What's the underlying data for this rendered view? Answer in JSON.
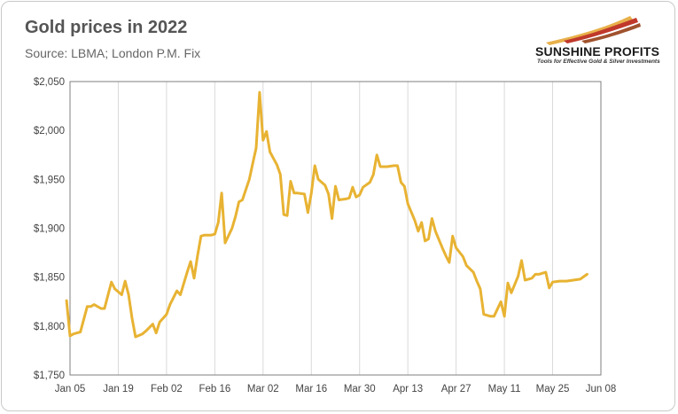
{
  "header": {
    "title": "Gold prices in 2022",
    "subtitle": "Source: LBMA; London P.M. Fix"
  },
  "logo": {
    "name": "SUNSHINE PROFITS",
    "tagline": "Tools for Effective Gold & Silver Investments",
    "colors": [
      "#e8b04a",
      "#c0392b",
      "#a0522d"
    ]
  },
  "chart_data": {
    "type": "line",
    "title": "Gold prices in 2022",
    "subtitle": "Source: LBMA; London P.M. Fix",
    "xlabel": "",
    "ylabel": "",
    "xlim": [
      "2022-01-05",
      "2022-06-08"
    ],
    "ylim": [
      1750,
      2050
    ],
    "y_ticks": [
      "$1,750",
      "$1,800",
      "$1,850",
      "$1,900",
      "$1,950",
      "$2,000",
      "$2,050"
    ],
    "y_tick_values": [
      1750,
      1800,
      1850,
      1900,
      1950,
      2000,
      2050
    ],
    "x_ticks": [
      "Jan 05",
      "Jan 19",
      "Feb 02",
      "Feb 16",
      "Mar 02",
      "Mar 16",
      "Mar 30",
      "Apr 13",
      "Apr 27",
      "May 11",
      "May 25",
      "Jun 08"
    ],
    "x_tick_dates": [
      "2022-01-05",
      "2022-01-19",
      "2022-02-02",
      "2022-02-16",
      "2022-03-02",
      "2022-03-16",
      "2022-03-30",
      "2022-04-13",
      "2022-04-27",
      "2022-05-11",
      "2022-05-25",
      "2022-06-08"
    ],
    "grid": "vertical",
    "line_color": "#e8b333",
    "series": [
      {
        "points": [
          [
            "2022-01-04",
            1826
          ],
          [
            "2022-01-05",
            1790
          ],
          [
            "2022-01-06",
            1792
          ],
          [
            "2022-01-07",
            1793
          ],
          [
            "2022-01-08",
            1794
          ],
          [
            "2022-01-10",
            1820
          ],
          [
            "2022-01-11",
            1820
          ],
          [
            "2022-01-12",
            1822
          ],
          [
            "2022-01-14",
            1818
          ],
          [
            "2022-01-15",
            1818
          ],
          [
            "2022-01-17",
            1845
          ],
          [
            "2022-01-18",
            1838
          ],
          [
            "2022-01-20",
            1832
          ],
          [
            "2022-01-21",
            1846
          ],
          [
            "2022-01-22",
            1832
          ],
          [
            "2022-01-23",
            1808
          ],
          [
            "2022-01-24",
            1789
          ],
          [
            "2022-01-26",
            1792
          ],
          [
            "2022-01-27",
            1795
          ],
          [
            "2022-01-29",
            1802
          ],
          [
            "2022-01-30",
            1793
          ],
          [
            "2022-01-31",
            1804
          ],
          [
            "2022-02-02",
            1812
          ],
          [
            "2022-02-03",
            1822
          ],
          [
            "2022-02-05",
            1836
          ],
          [
            "2022-02-06",
            1832
          ],
          [
            "2022-02-08",
            1855
          ],
          [
            "2022-02-09",
            1866
          ],
          [
            "2022-02-10",
            1849
          ],
          [
            "2022-02-11",
            1872
          ],
          [
            "2022-02-12",
            1892
          ],
          [
            "2022-02-13",
            1893
          ],
          [
            "2022-02-15",
            1893
          ],
          [
            "2022-02-16",
            1894
          ],
          [
            "2022-02-17",
            1906
          ],
          [
            "2022-02-18",
            1936
          ],
          [
            "2022-02-19",
            1885
          ],
          [
            "2022-02-21",
            1900
          ],
          [
            "2022-02-22",
            1912
          ],
          [
            "2022-02-23",
            1927
          ],
          [
            "2022-02-24",
            1929
          ],
          [
            "2022-02-26",
            1950
          ],
          [
            "2022-02-27",
            1966
          ],
          [
            "2022-02-28",
            1982
          ],
          [
            "2022-03-01",
            2039
          ],
          [
            "2022-03-02",
            1990
          ],
          [
            "2022-03-03",
            1999
          ],
          [
            "2022-03-04",
            1978
          ],
          [
            "2022-03-06",
            1965
          ],
          [
            "2022-03-07",
            1955
          ],
          [
            "2022-03-08",
            1914
          ],
          [
            "2022-03-09",
            1913
          ],
          [
            "2022-03-10",
            1948
          ],
          [
            "2022-03-11",
            1936
          ],
          [
            "2022-03-12",
            1936
          ],
          [
            "2022-03-14",
            1935
          ],
          [
            "2022-03-15",
            1916
          ],
          [
            "2022-03-16",
            1936
          ],
          [
            "2022-03-17",
            1964
          ],
          [
            "2022-03-18",
            1950
          ],
          [
            "2022-03-20",
            1944
          ],
          [
            "2022-03-21",
            1935
          ],
          [
            "2022-03-22",
            1910
          ],
          [
            "2022-03-23",
            1943
          ],
          [
            "2022-03-24",
            1929
          ],
          [
            "2022-03-26",
            1930
          ],
          [
            "2022-03-27",
            1931
          ],
          [
            "2022-03-28",
            1942
          ],
          [
            "2022-03-29",
            1932
          ],
          [
            "2022-03-30",
            1934
          ],
          [
            "2022-03-31",
            1942
          ],
          [
            "2022-04-02",
            1947
          ],
          [
            "2022-04-03",
            1955
          ],
          [
            "2022-04-04",
            1975
          ],
          [
            "2022-04-05",
            1963
          ],
          [
            "2022-04-07",
            1963
          ],
          [
            "2022-04-09",
            1964
          ],
          [
            "2022-04-10",
            1964
          ],
          [
            "2022-04-11",
            1947
          ],
          [
            "2022-04-12",
            1943
          ],
          [
            "2022-04-13",
            1925
          ],
          [
            "2022-04-15",
            1908
          ],
          [
            "2022-04-16",
            1897
          ],
          [
            "2022-04-17",
            1906
          ],
          [
            "2022-04-18",
            1887
          ],
          [
            "2022-04-19",
            1889
          ],
          [
            "2022-04-20",
            1910
          ],
          [
            "2022-04-21",
            1897
          ],
          [
            "2022-04-23",
            1880
          ],
          [
            "2022-04-24",
            1872
          ],
          [
            "2022-04-25",
            1865
          ],
          [
            "2022-04-26",
            1892
          ],
          [
            "2022-04-27",
            1880
          ],
          [
            "2022-04-29",
            1871
          ],
          [
            "2022-04-30",
            1862
          ],
          [
            "2022-05-02",
            1855
          ],
          [
            "2022-05-03",
            1846
          ],
          [
            "2022-05-04",
            1838
          ],
          [
            "2022-05-05",
            1812
          ],
          [
            "2022-05-07",
            1810
          ],
          [
            "2022-05-08",
            1810
          ],
          [
            "2022-05-10",
            1825
          ],
          [
            "2022-05-11",
            1810
          ],
          [
            "2022-05-12",
            1844
          ],
          [
            "2022-05-13",
            1834
          ],
          [
            "2022-05-15",
            1851
          ],
          [
            "2022-05-16",
            1867
          ],
          [
            "2022-05-17",
            1847
          ],
          [
            "2022-05-19",
            1849
          ],
          [
            "2022-05-20",
            1853
          ],
          [
            "2022-05-21",
            1853
          ],
          [
            "2022-05-23",
            1855
          ],
          [
            "2022-05-24",
            1839
          ],
          [
            "2022-05-25",
            1845
          ],
          [
            "2022-05-27",
            1846
          ],
          [
            "2022-05-29",
            1846
          ],
          [
            "2022-05-31",
            1847
          ],
          [
            "2022-06-02",
            1848
          ],
          [
            "2022-06-04",
            1853
          ]
        ]
      }
    ]
  }
}
